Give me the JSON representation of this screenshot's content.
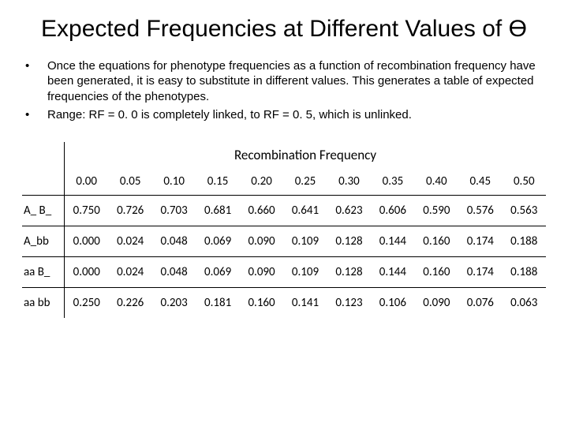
{
  "title": "Expected Frequencies at Different Values of Ө",
  "bullets": [
    "Once the equations for phenotype frequencies as a function of recombination frequency have been generated, it is easy to substitute in different values.  This generates a table of expected frequencies of the phenotypes.",
    "Range: RF = 0. 0 is completely linked, to RF = 0. 5, which is unlinked."
  ],
  "table": {
    "super_header": "Recombination Frequency",
    "rf_values": [
      "0.00",
      "0.05",
      "0.10",
      "0.15",
      "0.20",
      "0.25",
      "0.30",
      "0.35",
      "0.40",
      "0.45",
      "0.50"
    ],
    "rows": [
      {
        "label": "A_ B_",
        "values": [
          "0.750",
          "0.726",
          "0.703",
          "0.681",
          "0.660",
          "0.641",
          "0.623",
          "0.606",
          "0.590",
          "0.576",
          "0.563"
        ]
      },
      {
        "label": "A_bb",
        "values": [
          "0.000",
          "0.024",
          "0.048",
          "0.069",
          "0.090",
          "0.109",
          "0.128",
          "0.144",
          "0.160",
          "0.174",
          "0.188"
        ]
      },
      {
        "label": "aa B_",
        "values": [
          "0.000",
          "0.024",
          "0.048",
          "0.069",
          "0.090",
          "0.109",
          "0.128",
          "0.144",
          "0.160",
          "0.174",
          "0.188"
        ]
      },
      {
        "label": "aa bb",
        "values": [
          "0.250",
          "0.226",
          "0.203",
          "0.181",
          "0.160",
          "0.141",
          "0.123",
          "0.106",
          "0.090",
          "0.076",
          "0.063"
        ]
      }
    ],
    "style": {
      "font_family": "Calibri, Arial, sans-serif",
      "cell_font_size": 15,
      "super_header_font_size": 17,
      "border_color": "#000000",
      "background": "#ffffff",
      "text_color": "#000000"
    }
  }
}
